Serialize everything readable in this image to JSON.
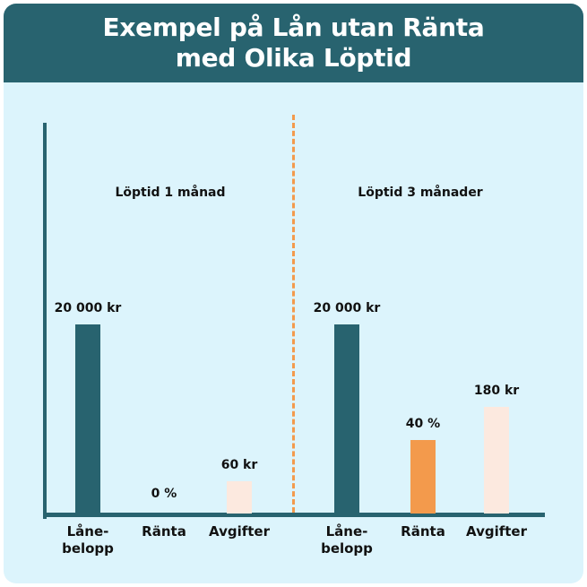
{
  "title_line1": "Exempel på Lån utan Ränta",
  "title_line2": "med Olika Löptid",
  "colors": {
    "header": "#28636f",
    "background": "#dcf4fc",
    "loan": "#28636f",
    "interest": "#f39a4c",
    "fees": "#fce9df",
    "divider": "#f39a4c"
  },
  "chart_data": [
    {
      "type": "bar",
      "title": "Löptid 1 månad",
      "categories": [
        "Låne-belopp",
        "Ränta",
        "Avgifter"
      ],
      "category_lines": [
        [
          "Låne-",
          "belopp"
        ],
        [
          "Ränta"
        ],
        [
          "Avgifter"
        ]
      ],
      "values": [
        20000,
        0,
        60
      ],
      "labels": [
        "20 000 kr",
        "0 %",
        "60 kr"
      ]
    },
    {
      "type": "bar",
      "title": "Löptid 3 månader",
      "categories": [
        "Låne-belopp",
        "Ränta",
        "Avgifter"
      ],
      "category_lines": [
        [
          "Låne-",
          "belopp"
        ],
        [
          "Ränta"
        ],
        [
          "Avgifter"
        ]
      ],
      "values": [
        20000,
        40,
        180
      ],
      "labels": [
        "20 000 kr",
        "40 %",
        "180 kr"
      ]
    }
  ]
}
